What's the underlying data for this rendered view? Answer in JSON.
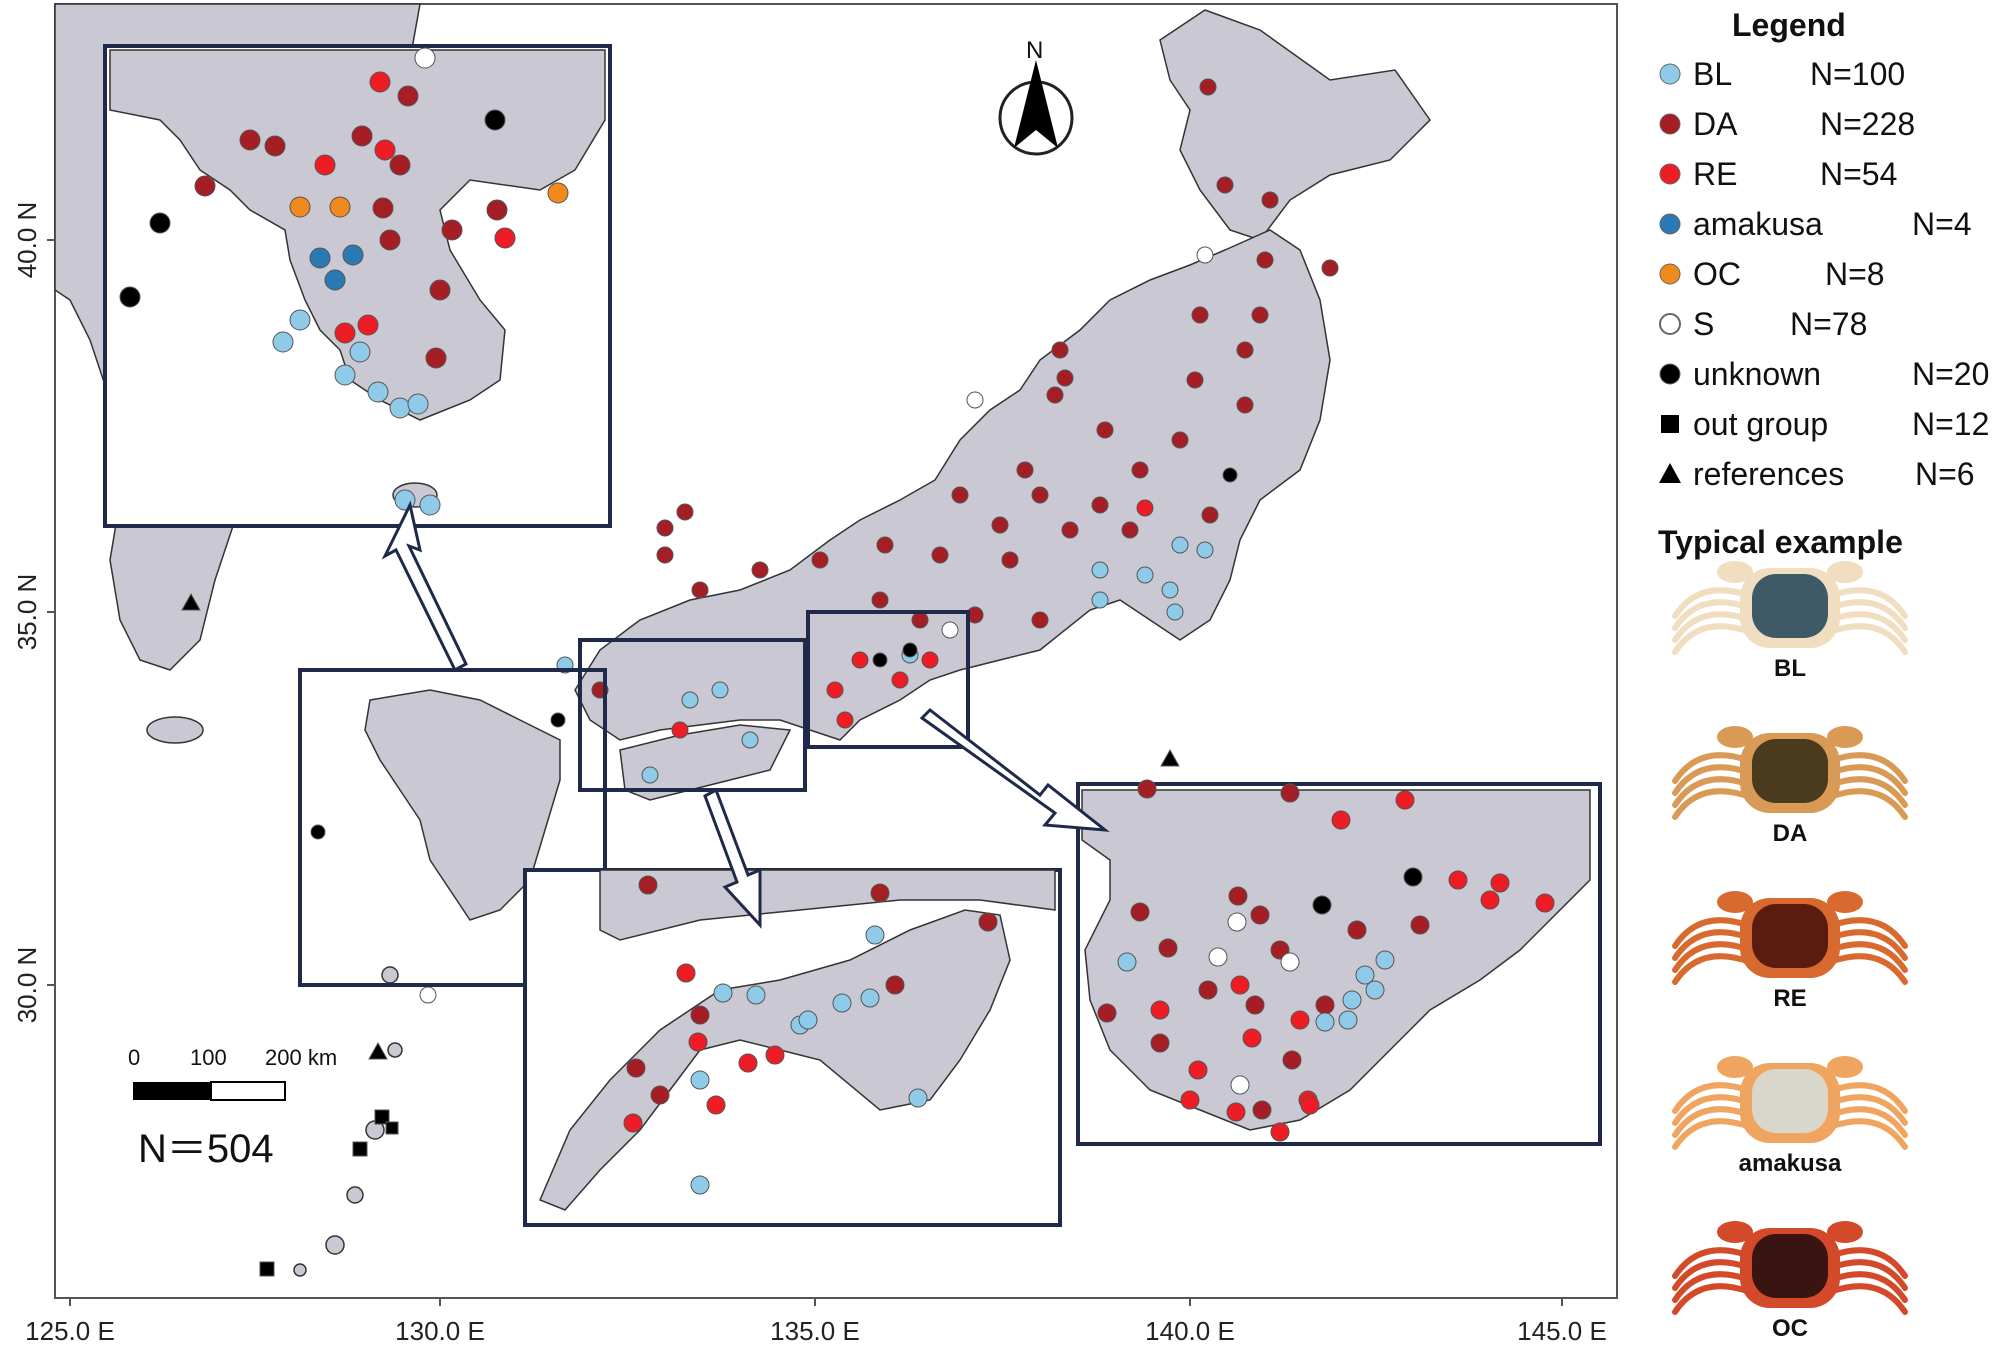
{
  "axes": {
    "x_ticks": [
      "125.0 E",
      "130.0 E",
      "135.0 E",
      "140.0 E",
      "145.0 E"
    ],
    "y_ticks": [
      "40.0 N",
      "35.0 N",
      "30.0 N"
    ]
  },
  "north_arrow": {
    "label": "N",
    "icon": "north-arrow-icon"
  },
  "scale_bar": {
    "labels": [
      "0",
      "100",
      "200 km"
    ]
  },
  "total": "N＝504",
  "legend": {
    "title": "Legend",
    "items": [
      {
        "name": "BL",
        "count": "N=100",
        "color": "#8fcbe8",
        "marker": "circle"
      },
      {
        "name": "DA",
        "count": "N=228",
        "color": "#a51e26",
        "marker": "circle"
      },
      {
        "name": "RE",
        "count": "N=54",
        "color": "#ee1c24",
        "marker": "circle"
      },
      {
        "name": "amakusa",
        "count": "N=4",
        "color": "#2b79b3",
        "marker": "circle"
      },
      {
        "name": "OC",
        "count": "N=8",
        "color": "#f08a1c",
        "marker": "circle"
      },
      {
        "name": "S",
        "count": "N=78",
        "color": "#ffffff",
        "marker": "hollow-circle"
      },
      {
        "name": "unknown",
        "count": "N=20",
        "color": "#000000",
        "marker": "circle"
      },
      {
        "name": "out group",
        "count": "N=12",
        "color": "#000000",
        "marker": "square"
      },
      {
        "name": "references",
        "count": "N=6",
        "color": "#000000",
        "marker": "triangle"
      }
    ]
  },
  "typical": {
    "title": "Typical example",
    "crabs": [
      {
        "label": "BL",
        "shell": "#3e5a66",
        "legs": "#f1ddc0"
      },
      {
        "label": "DA",
        "shell": "#4a3a1e",
        "legs": "#d89a55"
      },
      {
        "label": "RE",
        "shell": "#5a1c0e",
        "legs": "#d96a2f"
      },
      {
        "label": "amakusa",
        "shell": "#d9d6cc",
        "legs": "#efa560"
      },
      {
        "label": "OC",
        "shell": "#3a1410",
        "legs": "#d24a2a"
      }
    ]
  },
  "colors": {
    "land": "#c9c8d3",
    "sea": "#ffffff",
    "inset_border": "#1f2a4a"
  }
}
